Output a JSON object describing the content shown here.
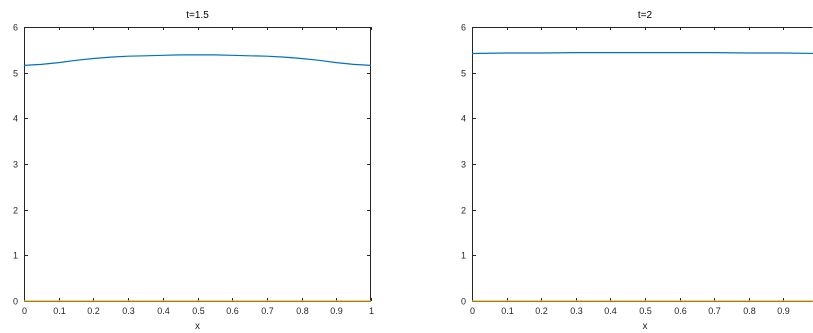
{
  "chart_data": [
    {
      "type": "line",
      "title": "t=1.5",
      "xlabel": "x",
      "ylabel": "",
      "xlim": [
        0,
        1
      ],
      "ylim": [
        0,
        6
      ],
      "xticks": [
        "0",
        "0.1",
        "0.2",
        "0.3",
        "0.4",
        "0.5",
        "0.6",
        "0.7",
        "0.8",
        "0.9",
        "1"
      ],
      "yticks": [
        "0",
        "1",
        "2",
        "3",
        "4",
        "5",
        "6"
      ],
      "grid": false,
      "series": [
        {
          "color": "#0072BD",
          "x": [
            0,
            0.05,
            0.1,
            0.15,
            0.2,
            0.25,
            0.3,
            0.35,
            0.4,
            0.45,
            0.5,
            0.55,
            0.6,
            0.65,
            0.7,
            0.75,
            0.8,
            0.85,
            0.9,
            0.95,
            1
          ],
          "y": [
            5.16,
            5.18,
            5.22,
            5.27,
            5.31,
            5.34,
            5.36,
            5.37,
            5.38,
            5.39,
            5.39,
            5.39,
            5.38,
            5.37,
            5.36,
            5.34,
            5.31,
            5.27,
            5.22,
            5.18,
            5.16
          ]
        },
        {
          "color": "#EDB120",
          "x": [
            0,
            1
          ],
          "y": [
            0,
            0
          ]
        }
      ]
    },
    {
      "type": "line",
      "title": "t=2",
      "xlabel": "x",
      "ylabel": "",
      "xlim": [
        0,
        1
      ],
      "ylim": [
        0,
        6
      ],
      "xticks": [
        "0",
        "0.1",
        "0.2",
        "0.3",
        "0.4",
        "0.5",
        "0.6",
        "0.7",
        "0.8",
        "0.9"
      ],
      "yticks": [
        "0",
        "1",
        "2",
        "3",
        "4",
        "5",
        "6"
      ],
      "grid": false,
      "series": [
        {
          "color": "#0072BD",
          "x": [
            0,
            0.1,
            0.2,
            0.3,
            0.4,
            0.5,
            0.6,
            0.7,
            0.8,
            0.9,
            1
          ],
          "y": [
            5.42,
            5.43,
            5.43,
            5.44,
            5.44,
            5.44,
            5.44,
            5.44,
            5.43,
            5.43,
            5.42
          ]
        },
        {
          "color": "#EDB120",
          "x": [
            0,
            1
          ],
          "y": [
            0,
            0
          ]
        }
      ]
    }
  ]
}
